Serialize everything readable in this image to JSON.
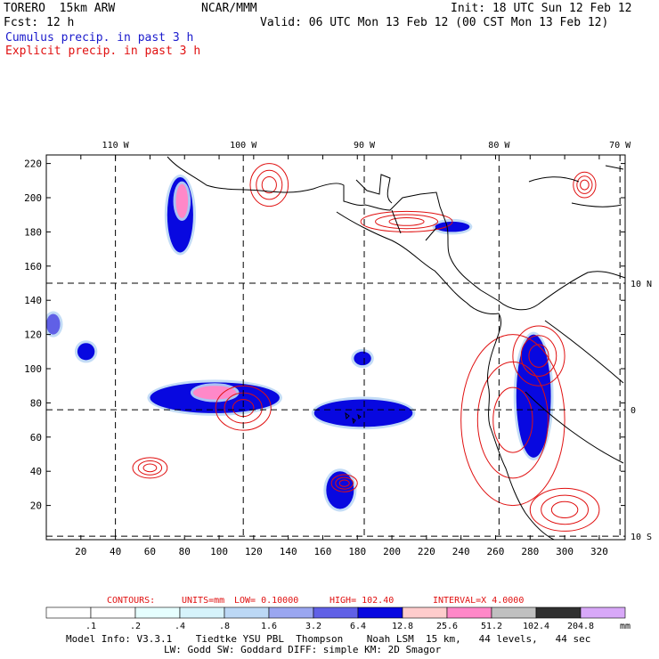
{
  "header": {
    "model": "TORERO  15km ARW",
    "org": "NCAR/MMM",
    "init": "Init: 18 UTC Sun 12 Feb 12",
    "fcst_label": "Fcst:",
    "fcst_value": "12 h",
    "valid": "Valid: 06 UTC Mon 13 Feb 12 (00 CST Mon 13 Feb 12)",
    "line_cumulus": "Cumulus precip. in past 3 h",
    "line_explicit": "Explicit precip. in past 3 h"
  },
  "colors": {
    "cumulus": "#1a1acc",
    "explicit": "#e01010",
    "land": "#000000"
  },
  "chart_data": {
    "type": "heatmap",
    "title": "Cumulus precip. in past 3 h / Explicit precip. in past 3 h",
    "x_ticks": [
      "20",
      "40",
      "60",
      "80",
      "100",
      "120",
      "140",
      "160",
      "180",
      "200",
      "220",
      "240",
      "260",
      "280",
      "300",
      "320"
    ],
    "y_ticks": [
      "20",
      "40",
      "60",
      "80",
      "100",
      "120",
      "140",
      "160",
      "180",
      "200",
      "220"
    ],
    "xlim": [
      0,
      335
    ],
    "ylim": [
      0,
      225
    ],
    "lon_labels": [
      "110 W",
      "100 W",
      "90 W",
      "80 W",
      "70 W"
    ],
    "lon_x": [
      40,
      114,
      184,
      262,
      332
    ],
    "lat_labels": [
      "10 N",
      "0",
      "10 S"
    ],
    "lat_y": [
      150,
      76,
      2
    ],
    "cumulus_areas": [
      {
        "x": [
          70,
          85
        ],
        "y": [
          168,
          212
        ],
        "level": "6.4"
      },
      {
        "x": [
          75,
          82
        ],
        "y": [
          188,
          208
        ],
        "level": "25.6"
      },
      {
        "x": [
          60,
          135
        ],
        "y": [
          74,
          92
        ],
        "level": "6.4"
      },
      {
        "x": [
          85,
          110
        ],
        "y": [
          82,
          90
        ],
        "level": "25.6"
      },
      {
        "x": [
          18,
          28
        ],
        "y": [
          105,
          115
        ],
        "level": "6.4"
      },
      {
        "x": [
          155,
          212
        ],
        "y": [
          66,
          82
        ],
        "level": "6.4"
      },
      {
        "x": [
          178,
          188
        ],
        "y": [
          102,
          110
        ],
        "level": "6.4"
      },
      {
        "x": [
          162,
          178
        ],
        "y": [
          18,
          40
        ],
        "level": "6.4"
      },
      {
        "x": [
          272,
          292
        ],
        "y": [
          48,
          120
        ],
        "level": "6.4"
      },
      {
        "x": [
          225,
          245
        ],
        "y": [
          180,
          186
        ],
        "level": "6.4"
      },
      {
        "x": [
          0,
          8
        ],
        "y": [
          120,
          132
        ],
        "level": "3.2"
      }
    ],
    "explicit_contours": [
      {
        "x": [
          182,
          235
        ],
        "y": [
          180,
          192
        ]
      },
      {
        "x": [
          98,
          130
        ],
        "y": [
          64,
          90
        ]
      },
      {
        "x": [
          50,
          70
        ],
        "y": [
          36,
          48
        ]
      },
      {
        "x": [
          240,
          300
        ],
        "y": [
          20,
          120
        ]
      },
      {
        "x": [
          280,
          320
        ],
        "y": [
          5,
          30
        ]
      },
      {
        "x": [
          270,
          300
        ],
        "y": [
          90,
          125
        ]
      },
      {
        "x": [
          118,
          140
        ],
        "y": [
          195,
          220
        ]
      },
      {
        "x": [
          165,
          180
        ],
        "y": [
          28,
          38
        ]
      },
      {
        "x": [
          305,
          318
        ],
        "y": [
          200,
          215
        ]
      }
    ],
    "contour_info": {
      "label": "CONTOURS:",
      "units": "UNITS=mm",
      "low": "LOW= 0.10000",
      "high": "HIGH=  102.40",
      "interval": "INTERVAL=X  4.0000"
    },
    "legend": {
      "labels": [
        ".1",
        ".2",
        ".4",
        ".8",
        "1.6",
        "3.2",
        "6.4",
        "12.8",
        "25.6",
        "51.2",
        "102.4",
        "204.8"
      ],
      "colors": [
        "#ffffff",
        "#ffffff",
        "#e6ffff",
        "#d6f3fb",
        "#bcd8f5",
        "#9aa6f0",
        "#6060e6",
        "#0808e0",
        "#ffcccc",
        "#ff88c8",
        "#c0c0c0",
        "#303030",
        "#d8a8f8"
      ],
      "unit": "mm"
    }
  },
  "footer": {
    "line1": "Model Info: V3.3.1    Tiedtke YSU PBL  Thompson    Noah LSM  15 km,   44 levels,   44 sec",
    "line2": "LW: Godd SW: Goddard DIFF: simple KM: 2D Smagor"
  }
}
